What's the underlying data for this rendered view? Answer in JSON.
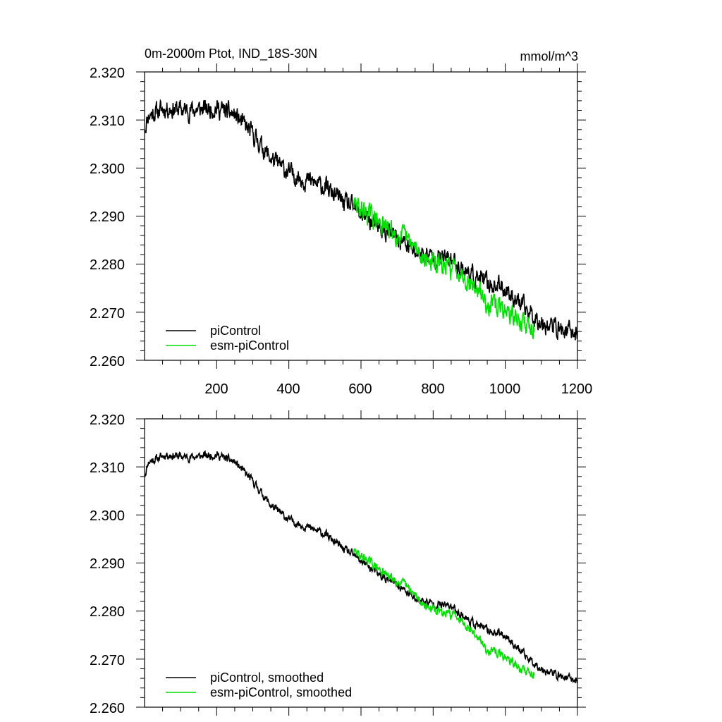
{
  "chart_data": [
    {
      "type": "line",
      "title": "0m-2000m Ptot, IND_18S-30N",
      "units_label": "mmol/m^3",
      "xlim": [
        0,
        1200
      ],
      "ylim": [
        2.26,
        2.32
      ],
      "x_tick_labels": [
        "200",
        "400",
        "600",
        "800",
        "1000",
        "1200"
      ],
      "y_tick_labels": [
        "2.320",
        "2.310",
        "2.300",
        "2.290",
        "2.280",
        "2.270",
        "2.260"
      ],
      "legend_position": "bottom-left",
      "series": [
        {
          "name": "piControl",
          "color": "#000000",
          "x_start": 1,
          "x_end": 1200,
          "noise": 0.0026,
          "seed": 11,
          "trend_x": [
            0,
            10,
            60,
            120,
            200,
            250,
            300,
            350,
            400,
            450,
            500,
            550,
            600,
            650,
            700,
            750,
            800,
            850,
            900,
            950,
            1000,
            1050,
            1100,
            1150,
            1200
          ],
          "trend_y": [
            2.308,
            2.311,
            2.3125,
            2.312,
            2.3125,
            2.311,
            2.307,
            2.302,
            2.299,
            2.2975,
            2.296,
            2.293,
            2.2905,
            2.2875,
            2.2855,
            2.2825,
            2.2815,
            2.281,
            2.278,
            2.276,
            2.275,
            2.271,
            2.268,
            2.2665,
            2.2655
          ]
        },
        {
          "name": "esm-piControl",
          "color": "#00e000",
          "x_start": 580,
          "x_end": 1080,
          "noise": 0.0028,
          "seed": 29,
          "trend_x": [
            580,
            620,
            670,
            720,
            780,
            830,
            870,
            900,
            950,
            1000,
            1040,
            1080
          ],
          "trend_y": [
            2.2925,
            2.2905,
            2.2875,
            2.2855,
            2.281,
            2.2795,
            2.279,
            2.2765,
            2.272,
            2.2705,
            2.268,
            2.267
          ]
        }
      ]
    },
    {
      "type": "line",
      "title": "",
      "xlim": [
        0,
        1200
      ],
      "ylim": [
        2.26,
        2.32
      ],
      "y_tick_labels": [
        "2.320",
        "2.310",
        "2.300",
        "2.290",
        "2.280",
        "2.270",
        "2.260"
      ],
      "legend_position": "bottom-left",
      "series": [
        {
          "name": "piControl, smoothed",
          "color": "#000000",
          "x_start": 1,
          "x_end": 1200,
          "noise": 0.0011,
          "seed": 11,
          "trend_x": [
            0,
            10,
            60,
            120,
            200,
            250,
            300,
            350,
            400,
            450,
            500,
            550,
            600,
            650,
            700,
            750,
            800,
            850,
            900,
            950,
            1000,
            1050,
            1100,
            1150,
            1200
          ],
          "trend_y": [
            2.308,
            2.311,
            2.3125,
            2.312,
            2.3125,
            2.311,
            2.307,
            2.302,
            2.299,
            2.2975,
            2.296,
            2.293,
            2.2905,
            2.2875,
            2.2855,
            2.2825,
            2.2815,
            2.281,
            2.278,
            2.276,
            2.275,
            2.271,
            2.268,
            2.2665,
            2.2655
          ]
        },
        {
          "name": "esm-piControl, smoothed",
          "color": "#00e000",
          "x_start": 580,
          "x_end": 1080,
          "noise": 0.0012,
          "seed": 29,
          "trend_x": [
            580,
            620,
            670,
            720,
            780,
            830,
            870,
            900,
            950,
            1000,
            1040,
            1080
          ],
          "trend_y": [
            2.2925,
            2.2905,
            2.2875,
            2.2855,
            2.281,
            2.2795,
            2.279,
            2.2765,
            2.272,
            2.2705,
            2.268,
            2.267
          ]
        }
      ]
    }
  ]
}
